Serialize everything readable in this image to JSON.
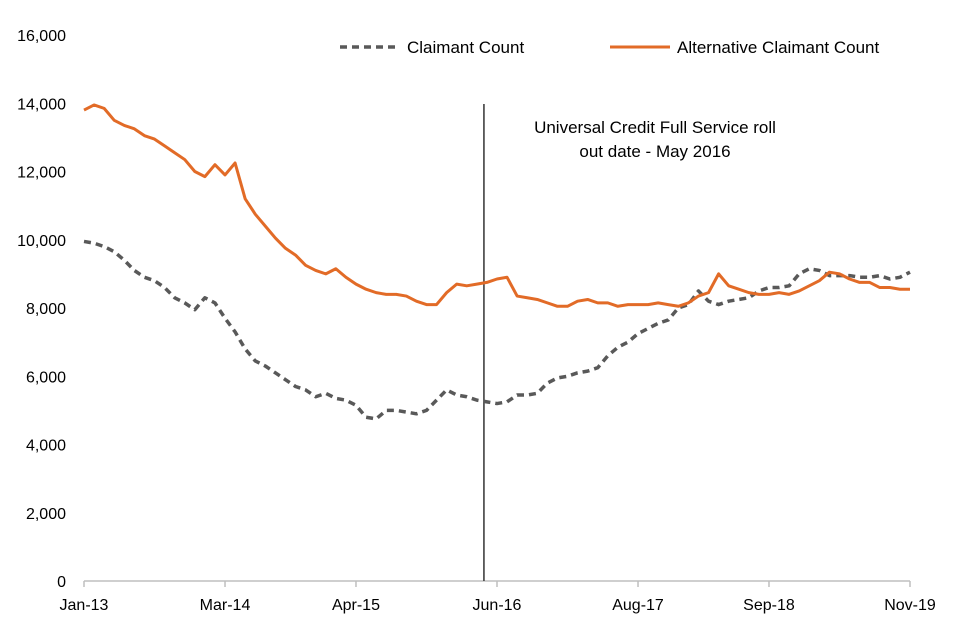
{
  "chart_data": {
    "type": "line",
    "title": "",
    "xlabel": "",
    "ylabel": "",
    "ylim": [
      0,
      16000
    ],
    "yticks": [
      0,
      2000,
      4000,
      6000,
      8000,
      10000,
      12000,
      14000,
      16000
    ],
    "ytick_labels": [
      "0",
      "2,000",
      "4,000",
      "6,000",
      "8,000",
      "10,000",
      "12,000",
      "14,000",
      "16,000"
    ],
    "xlim": [
      0,
      82
    ],
    "xticks": [
      0,
      14,
      27,
      41,
      55,
      68,
      82
    ],
    "xtick_labels": [
      "Jan-13",
      "Mar-14",
      "Apr-15",
      "Jun-16",
      "Aug-17",
      "Sep-18",
      "Nov-19"
    ],
    "grid": false,
    "legend_position": "top",
    "colors": {
      "claimant": "#595959",
      "alternative": "#E26B27",
      "marker": "#404040",
      "axis": "#bfbfbf"
    },
    "series": [
      {
        "name": "Claimant Count",
        "style": "dashed",
        "values": [
          9950,
          9900,
          9800,
          9650,
          9400,
          9100,
          8900,
          8800,
          8600,
          8300,
          8150,
          7950,
          8300,
          8150,
          7700,
          7300,
          6800,
          6450,
          6300,
          6100,
          5900,
          5700,
          5600,
          5400,
          5500,
          5350,
          5300,
          5150,
          4800,
          4750,
          5000,
          5000,
          4950,
          4900,
          5000,
          5300,
          5600,
          5450,
          5400,
          5300,
          5250,
          5200,
          5250,
          5450,
          5450,
          5500,
          5800,
          5950,
          6000,
          6100,
          6150,
          6250,
          6600,
          6850,
          7000,
          7250,
          7400,
          7550,
          7650,
          8000,
          8100,
          8500,
          8200,
          8100,
          8200,
          8250,
          8300,
          8500,
          8600,
          8600,
          8650,
          9000,
          9150,
          9100,
          8950,
          8950,
          8950,
          8900,
          8900,
          8950,
          8850,
          8900,
          9050
        ]
      },
      {
        "name": "Alternative Claimant Count",
        "style": "solid",
        "values": [
          13800,
          13950,
          13850,
          13500,
          13350,
          13250,
          13050,
          12950,
          12750,
          12550,
          12350,
          12000,
          11850,
          12200,
          11900,
          12250,
          11200,
          10750,
          10400,
          10050,
          9750,
          9550,
          9250,
          9100,
          9000,
          9150,
          8900,
          8700,
          8550,
          8450,
          8400,
          8400,
          8350,
          8200,
          8100,
          8100,
          8450,
          8700,
          8650,
          8700,
          8750,
          8850,
          8900,
          8350,
          8300,
          8250,
          8150,
          8050,
          8050,
          8200,
          8250,
          8150,
          8150,
          8050,
          8100,
          8100,
          8100,
          8150,
          8100,
          8050,
          8150,
          8350,
          8450,
          9000,
          8650,
          8550,
          8450,
          8400,
          8400,
          8450,
          8400,
          8500,
          8650,
          8800,
          9050,
          9000,
          8850,
          8750,
          8750,
          8600,
          8600,
          8550,
          8550
        ]
      }
    ],
    "annotation": {
      "x": 40,
      "lines": [
        "Universal Credit Full Service roll",
        "out date - May 2016"
      ]
    }
  }
}
